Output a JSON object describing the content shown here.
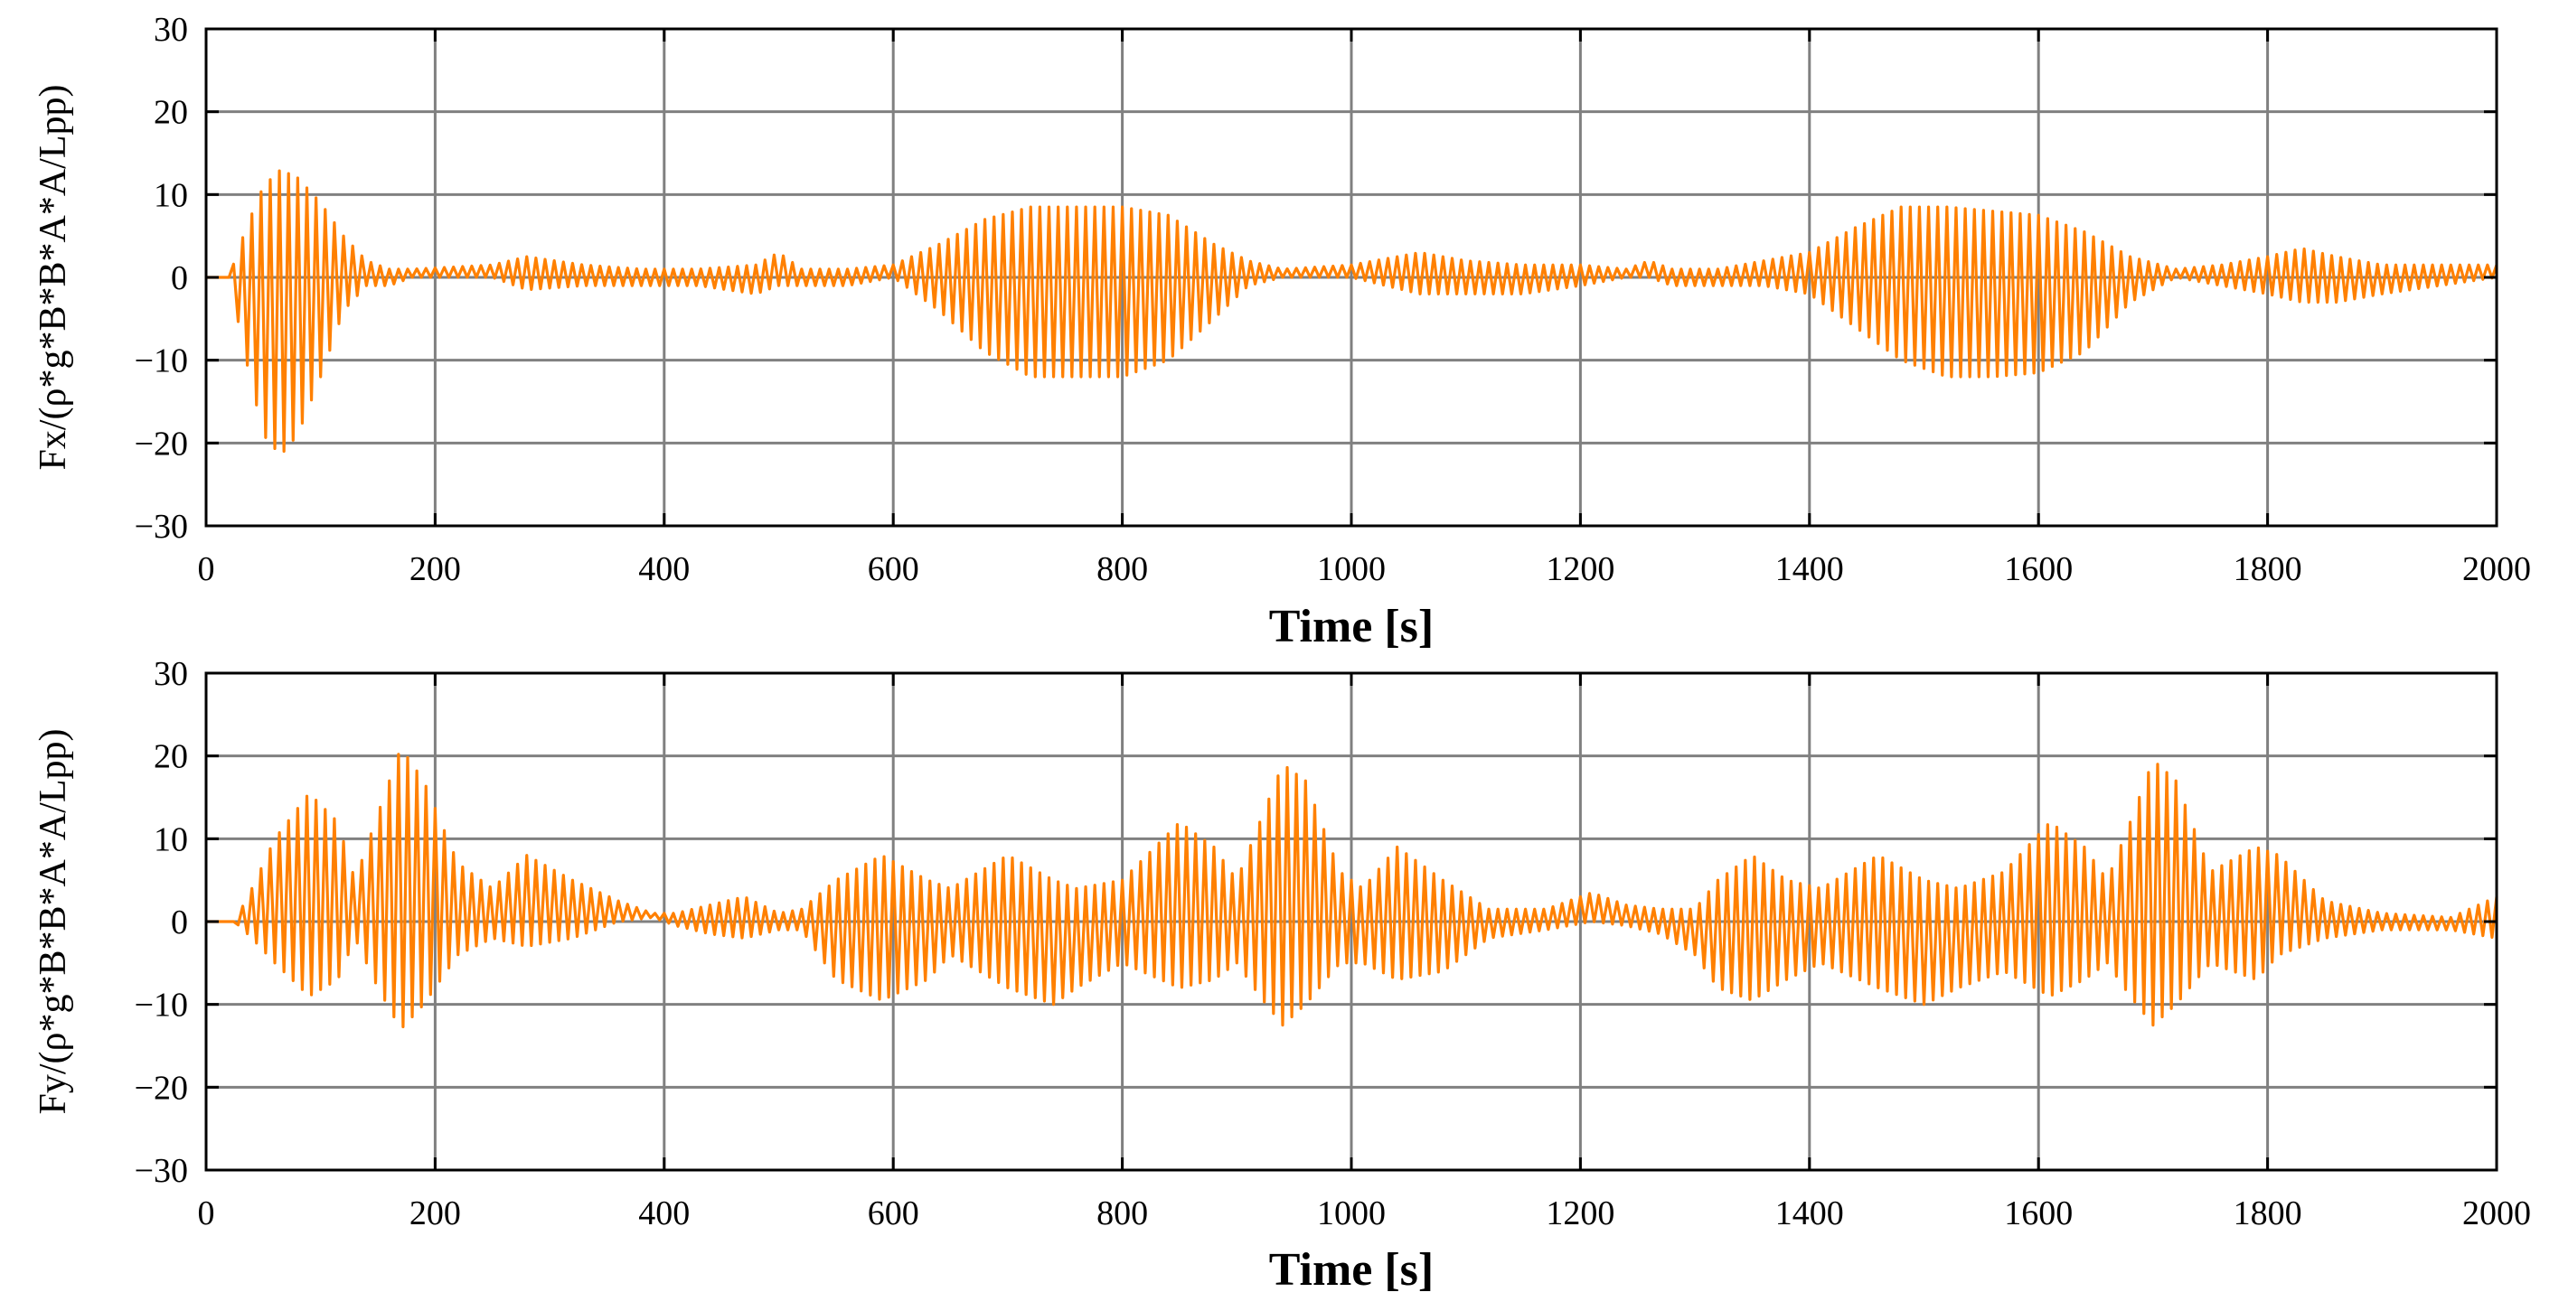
{
  "chart_data": [
    {
      "type": "line",
      "title": "",
      "xlabel": "Time [s]",
      "ylabel": "Fx/(ρ*g*B*B*A*A/Lpp)",
      "xlim": [
        0,
        2000
      ],
      "ylim": [
        -30,
        30
      ],
      "xticks": [
        0,
        200,
        400,
        600,
        800,
        1000,
        1200,
        1400,
        1600,
        1800,
        2000
      ],
      "yticks": [
        -30,
        -20,
        -10,
        0,
        10,
        20,
        30
      ],
      "grid": true,
      "series": [
        {
          "name": "Fx",
          "color": "#ff8000",
          "oscillation_period_s": 8,
          "offset": -0.5,
          "envelope": {
            "t": [
              0,
              20,
              35,
              50,
              65,
              80,
              100,
              120,
              140,
              160,
              180,
              250,
              280,
              330,
              380,
              430,
              480,
              500,
              520,
              560,
              600,
              640,
              680,
              720,
              760,
              800,
              840,
              880,
              910,
              940,
              1000,
              1060,
              1100,
              1150,
              1200,
              1240,
              1260,
              1280,
              1320,
              1360,
              1400,
              1440,
              1480,
              1520,
              1560,
              1600,
              1640,
              1680,
              1720,
              1760,
              1800,
              1830,
              1860,
              1900,
              1950,
              2000
            ],
            "upper": [
              0,
              0,
              6,
              11,
              13,
              12,
              9,
              5,
              2,
              1,
              1,
              1.5,
              2.5,
              1.5,
              1,
              1,
              1.5,
              3,
              1,
              1,
              1.5,
              4,
              7,
              8.5,
              8.5,
              8.5,
              7.5,
              4,
              2,
              1,
              1.5,
              3,
              2,
              1.5,
              1.5,
              1,
              2,
              1,
              1,
              2,
              3,
              6,
              8.5,
              8.5,
              8,
              7.5,
              5.5,
              2.5,
              1,
              1.5,
              2.5,
              3.5,
              2.5,
              1.5,
              1.5,
              1.5
            ],
            "lower": [
              0,
              0,
              -10,
              -19,
              -21.5,
              -19,
              -12,
              -4,
              -1,
              -1,
              0,
              0,
              -1.5,
              -1,
              -1,
              -1,
              -2,
              -1,
              -1,
              -1,
              0,
              -4,
              -9,
              -12,
              -12,
              -12,
              -10,
              -5,
              -1,
              0,
              0,
              -2,
              -2,
              -2,
              -1,
              0,
              0,
              -1,
              -1,
              -1,
              -2,
              -6,
              -10,
              -12,
              -12,
              -11.5,
              -9,
              -3,
              0,
              -1,
              -2,
              -3,
              -3,
              -2,
              -1,
              0
            ]
          }
        }
      ]
    },
    {
      "type": "line",
      "title": "",
      "xlabel": "Time [s]",
      "ylabel": "Fy/(ρ*g*B*B*A*A/Lpp)",
      "xlim": [
        0,
        2000
      ],
      "ylim": [
        -30,
        30
      ],
      "xticks": [
        0,
        200,
        400,
        600,
        800,
        1000,
        1200,
        1400,
        1600,
        1800,
        2000
      ],
      "yticks": [
        -30,
        -20,
        -10,
        0,
        10,
        20,
        30
      ],
      "grid": true,
      "series": [
        {
          "name": "Fy",
          "color": "#ff8000",
          "oscillation_period_s": 8,
          "offset": 0.5,
          "envelope": {
            "t": [
              0,
              25,
              40,
              60,
              90,
              115,
              130,
              150,
              170,
              190,
              220,
              250,
              280,
              320,
              360,
              390,
              410,
              440,
              470,
              500,
              520,
              550,
              590,
              630,
              650,
              700,
              740,
              760,
              800,
              850,
              880,
              900,
              920,
              940,
              960,
              990,
              1010,
              1040,
              1080,
              1120,
              1170,
              1210,
              1240,
              1270,
              1300,
              1320,
              1350,
              1380,
              1410,
              1460,
              1500,
              1530,
              1570,
              1610,
              1640,
              1660,
              1680,
              1700,
              1720,
              1750,
              1790,
              1810,
              1850,
              1900,
              1960,
              2000
            ],
            "upper": [
              0,
              0,
              4,
              10,
              15.5,
              12,
              5,
              13,
              21,
              17,
              7,
              4,
              8,
              5,
              2.5,
              1,
              1,
              2,
              3,
              1,
              1.5,
              5,
              8,
              5,
              4,
              8,
              5,
              4,
              5,
              12,
              9,
              5,
              12,
              19,
              17,
              6,
              4,
              9,
              5,
              1.5,
              1.5,
              3.5,
              2,
              1.5,
              1.5,
              5,
              8,
              5,
              4,
              8,
              5,
              4,
              6,
              12,
              9,
              5,
              12,
              19.5,
              17,
              6,
              9,
              8,
              2.5,
              1,
              0.5,
              3
            ],
            "lower": [
              0,
              0,
              -2,
              -5,
              -9,
              -7,
              -2,
              -8,
              -13,
              -10,
              -4,
              -2,
              -3,
              -2,
              0,
              0.5,
              -0.5,
              -1.5,
              -2,
              -1,
              -1,
              -7,
              -9.5,
              -7,
              -4,
              -8,
              -10,
              -8,
              -5,
              -8,
              -7,
              -5,
              -9,
              -12.5,
              -10,
              -5,
              -5,
              -7,
              -6,
              -2,
              -1,
              0,
              -0.5,
              -1.5,
              -4,
              -8,
              -9.5,
              -7,
              -5,
              -8,
              -10,
              -8,
              -6,
              -9,
              -7,
              -5,
              -9,
              -12.5,
              -10,
              -5,
              -7,
              -4,
              -2,
              -1,
              -1,
              -2
            ]
          }
        }
      ]
    }
  ]
}
